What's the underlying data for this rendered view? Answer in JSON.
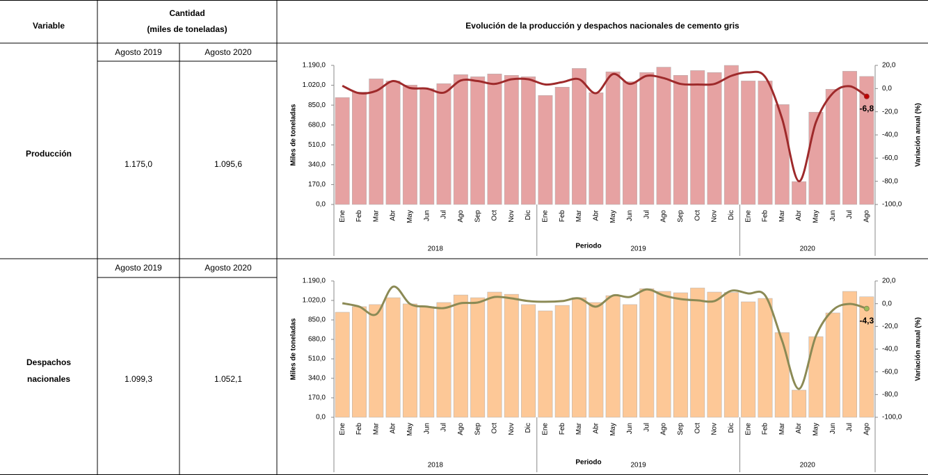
{
  "table": {
    "header": {
      "variable": "Variable",
      "quantity": [
        "Cantidad",
        "(miles de toneladas)"
      ],
      "chart": "Evolución de la producción y despachos nacionales de cemento gris"
    },
    "rows": [
      {
        "variable": [
          "Producción"
        ],
        "periods": [
          "Agosto 2019",
          "Agosto 2020"
        ],
        "values": [
          "1.175,0",
          "1.095,6"
        ]
      },
      {
        "variable": [
          "Despachos",
          "nacionales"
        ],
        "periods": [
          "Agosto 2019",
          "Agosto 2020"
        ],
        "values": [
          "1.099,3",
          "1.052,1"
        ]
      }
    ]
  },
  "chart_data": [
    {
      "type": "bar",
      "categories": [
        "Ene",
        "Feb",
        "Mar",
        "Abr",
        "May",
        "Jun",
        "Jul",
        "Ago",
        "Sep",
        "Oct",
        "Nov",
        "Dic",
        "Ene",
        "Feb",
        "Mar",
        "Abr",
        "May",
        "Jun",
        "Jul",
        "Ago",
        "Sep",
        "Oct",
        "Nov",
        "Dic",
        "Ene",
        "Feb",
        "Mar",
        "Abr",
        "May",
        "Jun",
        "Jul",
        "Ago"
      ],
      "category_groups": [
        "2018",
        "2019",
        "2020"
      ],
      "xlabel": "Periodo",
      "ylabel": "Miles de toneladas",
      "y2label": "Variación anual (%)",
      "ylim": [
        0,
        1190
      ],
      "yticks": [
        {
          "value": 0,
          "label": "0,0"
        },
        {
          "value": 170,
          "label": "170,0"
        },
        {
          "value": 340,
          "label": "340,0"
        },
        {
          "value": 510,
          "label": "510,0"
        },
        {
          "value": 680,
          "label": "680,0"
        },
        {
          "value": 850,
          "label": "850,0"
        },
        {
          "value": 1020,
          "label": "1.020,0"
        },
        {
          "value": 1190,
          "label": "1.190,0"
        }
      ],
      "y2lim": [
        -100,
        20
      ],
      "y2ticks": [
        {
          "value": -100,
          "label": "-100,0"
        },
        {
          "value": -80,
          "label": "-80,0"
        },
        {
          "value": -60,
          "label": "-60,0"
        },
        {
          "value": -40,
          "label": "-40,0"
        },
        {
          "value": -20,
          "label": "-20,0"
        },
        {
          "value": 0,
          "label": "0,0"
        },
        {
          "value": 20,
          "label": "20,0"
        }
      ],
      "series": [
        {
          "type": "bar",
          "color": "#e6a2a2",
          "values": [
            915,
            962,
            1075,
            1057,
            1022,
            992,
            1034,
            1111,
            1093,
            1117,
            1105,
            1093,
            933,
            1004,
            1164,
            956,
            1135,
            1051,
            1129,
            1175,
            1105,
            1146,
            1129,
            1190,
            1057,
            1057,
            855,
            196,
            790,
            986,
            1140,
            1095.6
          ]
        },
        {
          "type": "line",
          "axis": "y2",
          "color": "#9e2a2b",
          "values": [
            2.4,
            -4,
            -2,
            6.5,
            0.5,
            0,
            -3.5,
            7,
            6.5,
            4,
            8,
            8,
            3.5,
            5.5,
            8,
            -4,
            12.5,
            4,
            11,
            9,
            4,
            3.5,
            4,
            11,
            14,
            10,
            -26,
            -80,
            -29,
            -4,
            2,
            -6.8
          ],
          "value_labels": [
            null,
            null,
            null,
            null,
            null,
            null,
            null,
            null,
            null,
            null,
            null,
            null,
            null,
            null,
            null,
            null,
            null,
            null,
            null,
            null,
            null,
            null,
            null,
            null,
            null,
            null,
            null,
            null,
            null,
            null,
            null,
            "-6,8"
          ]
        }
      ]
    },
    {
      "type": "bar",
      "categories": [
        "Ene",
        "Feb",
        "Mar",
        "Abr",
        "May",
        "Jun",
        "Jul",
        "Ago",
        "Sep",
        "Oct",
        "Nov",
        "Dic",
        "Ene",
        "Feb",
        "Mar",
        "Abr",
        "May",
        "Jun",
        "Jul",
        "Ago",
        "Sep",
        "Oct",
        "Nov",
        "Dic",
        "Ene",
        "Feb",
        "Mar",
        "Abr",
        "May",
        "Jun",
        "Jul",
        "Ago"
      ],
      "category_groups": [
        "2018",
        "2019",
        "2020"
      ],
      "xlabel": "Periodo",
      "ylabel": "Miles de toneladas",
      "y2label": "Variación anual (%)",
      "ylim": [
        0,
        1190
      ],
      "yticks": [
        {
          "value": 0,
          "label": "0,0"
        },
        {
          "value": 170,
          "label": "170,0"
        },
        {
          "value": 340,
          "label": "340,0"
        },
        {
          "value": 510,
          "label": "510,0"
        },
        {
          "value": 680,
          "label": "680,0"
        },
        {
          "value": 850,
          "label": "850,0"
        },
        {
          "value": 1020,
          "label": "1.020,0"
        },
        {
          "value": 1190,
          "label": "1.190,0"
        }
      ],
      "y2lim": [
        -100,
        20
      ],
      "y2ticks": [
        {
          "value": -100,
          "label": "-100,0"
        },
        {
          "value": -80,
          "label": "-80,0"
        },
        {
          "value": -60,
          "label": "-60,0"
        },
        {
          "value": -40,
          "label": "-40,0"
        },
        {
          "value": -20,
          "label": "-20,0"
        },
        {
          "value": 0,
          "label": "0,0"
        },
        {
          "value": 20,
          "label": "20,0"
        }
      ],
      "series": [
        {
          "type": "bar",
          "color": "#fdc897",
          "values": [
            917,
            966,
            984,
            1044,
            990,
            966,
            1002,
            1068,
            1044,
            1093,
            1074,
            984,
            929,
            977,
            1044,
            1002,
            1062,
            984,
            1123,
            1099.3,
            1087,
            1129,
            1093,
            1090,
            1008,
            1038,
            740,
            237,
            704,
            911,
            1099,
            1052.1
          ]
        },
        {
          "type": "line",
          "axis": "y2",
          "color": "#8b8a55",
          "values": [
            0.4,
            -2.6,
            -9.4,
            15,
            -0.2,
            -2.6,
            -3.9,
            0.4,
            1,
            5.9,
            4.7,
            2.3,
            1.7,
            2.3,
            4.7,
            -2.6,
            7.2,
            5.9,
            12.6,
            7.2,
            4.1,
            2.9,
            2.3,
            11.4,
            9,
            7.2,
            -32.6,
            -75,
            -28.4,
            -5.7,
            -0.2,
            -4.3
          ],
          "value_labels": [
            null,
            null,
            null,
            null,
            null,
            null,
            null,
            null,
            null,
            null,
            null,
            null,
            null,
            null,
            null,
            null,
            null,
            null,
            null,
            null,
            null,
            null,
            null,
            null,
            null,
            null,
            null,
            null,
            null,
            null,
            null,
            "-4,3"
          ]
        }
      ]
    }
  ]
}
